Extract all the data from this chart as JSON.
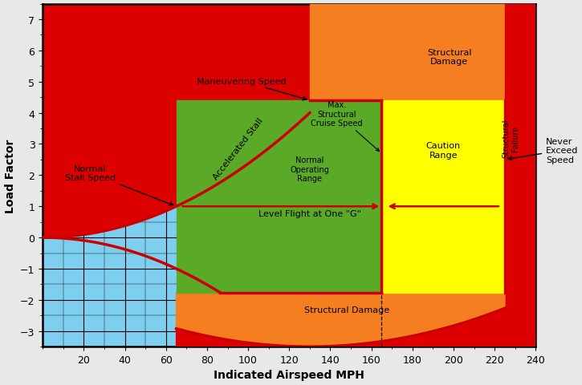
{
  "xlim": [
    0,
    240
  ],
  "ylim": [
    -3.5,
    7.5
  ],
  "xticks": [
    20,
    40,
    60,
    80,
    100,
    120,
    140,
    160,
    180,
    200,
    220,
    240
  ],
  "yticks": [
    -3,
    -2,
    -1,
    0,
    1,
    2,
    3,
    4,
    5,
    6,
    7
  ],
  "xlabel": "Indicated Airspeed MPH",
  "ylabel": "Load Factor",
  "Vs": 65,
  "Va": 130,
  "Vno": 165,
  "Vne": 225,
  "n_max": 4.4,
  "n_min": -1.76,
  "n_bottom": -3.5,
  "red_color": "#dd0000",
  "orange_color": "#f57f20",
  "yellow_color": "#ffff00",
  "green_color": "#5aaa28",
  "blue_color": "#7ecfef",
  "curve_color": "#cc0000",
  "curve_lw": 2.5,
  "grid_major_lw": 0.8,
  "grid_minor_lw": 0.3,
  "ann_fontsize": 8,
  "label_fontsize": 10
}
